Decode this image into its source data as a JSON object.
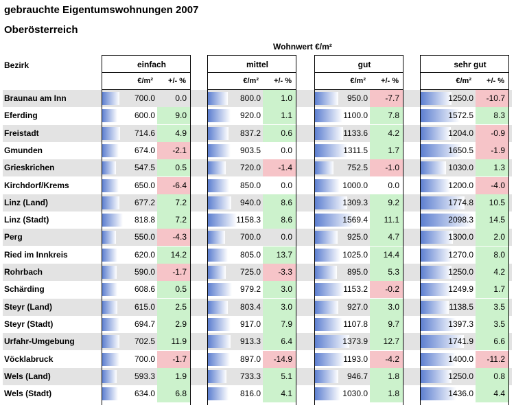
{
  "title": "gebrauchte Eigentumswohnungen 2007",
  "subtitle": "Oberösterreich",
  "super_header": "Wohnwert €/m²",
  "row_header": "Bezirk",
  "sub_header_price": "€/m²",
  "sub_header_change": "+/- %",
  "colors": {
    "positive": "#ccf2cc",
    "negative": "#f6c4c8",
    "bar": "#5d7fd0",
    "stripe": "#e3e3e3"
  },
  "chart_data": {
    "type": "table",
    "groups": [
      "einfach",
      "mittel",
      "gut",
      "sehr gut"
    ],
    "rows": [
      {
        "bezirk": "Braunau am Inn",
        "values": [
          [
            "700.0",
            "0.0"
          ],
          [
            "800.0",
            "1.0"
          ],
          [
            "950.0",
            "-7.7"
          ],
          [
            "1250.0",
            "-10.7"
          ]
        ]
      },
      {
        "bezirk": "Eferding",
        "values": [
          [
            "600.0",
            "9.0"
          ],
          [
            "920.0",
            "1.1"
          ],
          [
            "1100.0",
            "7.8"
          ],
          [
            "1572.5",
            "8.3"
          ]
        ]
      },
      {
        "bezirk": "Freistadt",
        "values": [
          [
            "714.6",
            "4.9"
          ],
          [
            "837.2",
            "0.6"
          ],
          [
            "1133.6",
            "4.2"
          ],
          [
            "1204.0",
            "-0.9"
          ]
        ]
      },
      {
        "bezirk": "Gmunden",
        "values": [
          [
            "674.0",
            "-2.1"
          ],
          [
            "903.5",
            "0.0"
          ],
          [
            "1311.5",
            "1.7"
          ],
          [
            "1650.5",
            "-1.9"
          ]
        ]
      },
      {
        "bezirk": "Grieskrichen",
        "values": [
          [
            "547.5",
            "0.5"
          ],
          [
            "720.0",
            "-1.4"
          ],
          [
            "752.5",
            "-1.0"
          ],
          [
            "1030.0",
            "1.3"
          ]
        ]
      },
      {
        "bezirk": "Kirchdorf/Krems",
        "values": [
          [
            "650.0",
            "-6.4"
          ],
          [
            "850.0",
            "0.0"
          ],
          [
            "1000.0",
            "0.0"
          ],
          [
            "1200.0",
            "-4.0"
          ]
        ]
      },
      {
        "bezirk": "Linz (Land)",
        "values": [
          [
            "677.2",
            "7.2"
          ],
          [
            "940.0",
            "8.6"
          ],
          [
            "1309.3",
            "9.2"
          ],
          [
            "1774.8",
            "10.5"
          ]
        ]
      },
      {
        "bezirk": "Linz (Stadt)",
        "values": [
          [
            "818.8",
            "7.2"
          ],
          [
            "1158.3",
            "8.6"
          ],
          [
            "1569.4",
            "11.1"
          ],
          [
            "2098.3",
            "14.5"
          ]
        ]
      },
      {
        "bezirk": "Perg",
        "values": [
          [
            "550.0",
            "-4.3"
          ],
          [
            "700.0",
            "0.0"
          ],
          [
            "925.0",
            "4.7"
          ],
          [
            "1300.0",
            "2.0"
          ]
        ]
      },
      {
        "bezirk": "Ried im Innkreis",
        "values": [
          [
            "620.0",
            "14.2"
          ],
          [
            "805.0",
            "13.7"
          ],
          [
            "1025.0",
            "14.4"
          ],
          [
            "1270.0",
            "8.0"
          ]
        ]
      },
      {
        "bezirk": "Rohrbach",
        "values": [
          [
            "590.0",
            "-1.7"
          ],
          [
            "725.0",
            "-3.3"
          ],
          [
            "895.0",
            "5.3"
          ],
          [
            "1250.0",
            "4.2"
          ]
        ]
      },
      {
        "bezirk": "Schärding",
        "values": [
          [
            "608.6",
            "0.5"
          ],
          [
            "979.2",
            "3.0"
          ],
          [
            "1153.2",
            "-0.2"
          ],
          [
            "1249.9",
            "1.7"
          ]
        ]
      },
      {
        "bezirk": "Steyr (Land)",
        "values": [
          [
            "615.0",
            "2.5"
          ],
          [
            "803.4",
            "3.0"
          ],
          [
            "927.0",
            "3.0"
          ],
          [
            "1138.5",
            "3.5"
          ]
        ]
      },
      {
        "bezirk": "Steyr (Stadt)",
        "values": [
          [
            "694.7",
            "2.9"
          ],
          [
            "917.0",
            "7.9"
          ],
          [
            "1107.8",
            "9.7"
          ],
          [
            "1397.3",
            "3.5"
          ]
        ]
      },
      {
        "bezirk": "Urfahr-Umgebung",
        "values": [
          [
            "702.5",
            "11.9"
          ],
          [
            "913.3",
            "6.4"
          ],
          [
            "1373.9",
            "12.7"
          ],
          [
            "1741.9",
            "6.6"
          ]
        ]
      },
      {
        "bezirk": "Vöcklabruck",
        "values": [
          [
            "700.0",
            "-1.7"
          ],
          [
            "897.0",
            "-14.9"
          ],
          [
            "1193.0",
            "-4.2"
          ],
          [
            "1400.0",
            "-11.2"
          ]
        ]
      },
      {
        "bezirk": "Wels (Land)",
        "values": [
          [
            "593.3",
            "1.9"
          ],
          [
            "733.3",
            "5.1"
          ],
          [
            "946.7",
            "1.8"
          ],
          [
            "1250.0",
            "0.8"
          ]
        ]
      },
      {
        "bezirk": "Wels (Stadt)",
        "values": [
          [
            "634.0",
            "6.8"
          ],
          [
            "816.0",
            "4.1"
          ],
          [
            "1030.0",
            "1.8"
          ],
          [
            "1436.0",
            "4.4"
          ]
        ]
      }
    ]
  }
}
